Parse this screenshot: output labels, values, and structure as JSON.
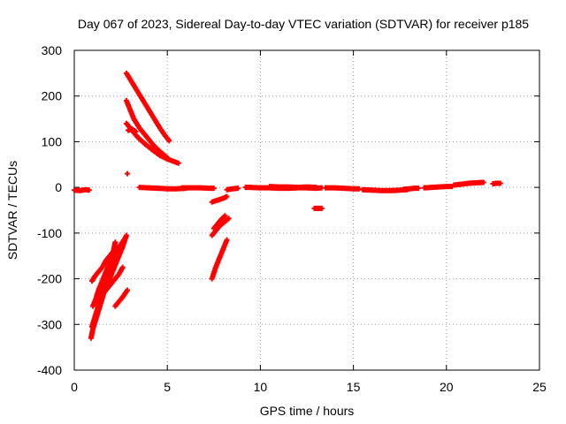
{
  "chart_data": {
    "type": "scatter",
    "title": "Day 067 of 2023, Sidereal Day-to-day VTEC variation (SDTVAR) for receiver p185",
    "xlabel": "GPS time / hours",
    "ylabel": "SDTVAR / TECUs",
    "xlim": [
      0,
      25
    ],
    "ylim": [
      -400,
      300
    ],
    "xticks": [
      "0",
      "5",
      "10",
      "15",
      "20",
      "25"
    ],
    "yticks": [
      "-400",
      "-300",
      "-200",
      "-100",
      "0",
      "100",
      "200",
      "300"
    ],
    "grid": true,
    "marker": "+",
    "color": "#ff0000",
    "series": [
      {
        "name": "arc-early-0",
        "points": [
          [
            0.0,
            -6
          ],
          [
            0.3,
            -7
          ],
          [
            0.6,
            -5
          ],
          [
            0.8,
            -6
          ]
        ]
      },
      {
        "name": "arc-neg-a",
        "points": [
          [
            0.9,
            -330
          ],
          [
            1.0,
            -310
          ],
          [
            1.15,
            -290
          ],
          [
            1.3,
            -270
          ],
          [
            1.45,
            -250
          ],
          [
            1.6,
            -230
          ],
          [
            1.75,
            -210
          ],
          [
            1.9,
            -190
          ],
          [
            2.05,
            -170
          ],
          [
            2.2,
            -150
          ],
          [
            2.3,
            -135
          ]
        ]
      },
      {
        "name": "arc-neg-b",
        "points": [
          [
            0.95,
            -305
          ],
          [
            1.1,
            -285
          ],
          [
            1.25,
            -265
          ],
          [
            1.4,
            -245
          ],
          [
            1.55,
            -225
          ],
          [
            1.7,
            -200
          ],
          [
            1.85,
            -180
          ],
          [
            2.0,
            -160
          ],
          [
            2.1,
            -140
          ],
          [
            2.2,
            -120
          ]
        ]
      },
      {
        "name": "arc-neg-c",
        "points": [
          [
            1.0,
            -260
          ],
          [
            1.15,
            -245
          ],
          [
            1.3,
            -225
          ],
          [
            1.5,
            -205
          ],
          [
            1.7,
            -185
          ],
          [
            1.9,
            -165
          ],
          [
            2.1,
            -150
          ],
          [
            2.3,
            -135
          ],
          [
            2.5,
            -125
          ],
          [
            2.75,
            -110
          ]
        ]
      },
      {
        "name": "arc-neg-d",
        "points": [
          [
            0.95,
            -205
          ],
          [
            1.1,
            -195
          ],
          [
            1.3,
            -185
          ],
          [
            1.5,
            -175
          ],
          [
            1.7,
            -160
          ],
          [
            1.9,
            -150
          ],
          [
            2.1,
            -140
          ]
        ]
      },
      {
        "name": "arc-neg-e",
        "points": [
          [
            1.4,
            -240
          ],
          [
            1.6,
            -225
          ],
          [
            1.8,
            -210
          ],
          [
            2.0,
            -190
          ],
          [
            2.2,
            -170
          ],
          [
            2.4,
            -150
          ],
          [
            2.6,
            -130
          ],
          [
            2.8,
            -105
          ]
        ]
      },
      {
        "name": "arc-neg-f",
        "points": [
          [
            1.6,
            -230
          ],
          [
            1.8,
            -220
          ],
          [
            2.0,
            -210
          ],
          [
            2.2,
            -200
          ],
          [
            2.4,
            -190
          ],
          [
            2.6,
            -175
          ]
        ]
      },
      {
        "name": "arc-neg-g",
        "points": [
          [
            2.2,
            -260
          ],
          [
            2.4,
            -250
          ],
          [
            2.6,
            -240
          ],
          [
            2.85,
            -225
          ]
        ]
      },
      {
        "name": "arc-pos-a",
        "points": [
          [
            2.8,
            250
          ],
          [
            3.1,
            230
          ],
          [
            3.4,
            210
          ],
          [
            3.7,
            190
          ],
          [
            4.0,
            170
          ],
          [
            4.3,
            150
          ],
          [
            4.6,
            130
          ],
          [
            4.85,
            115
          ],
          [
            5.1,
            102
          ]
        ]
      },
      {
        "name": "arc-pos-b",
        "points": [
          [
            2.8,
            190
          ],
          [
            3.0,
            170
          ],
          [
            3.2,
            150
          ],
          [
            3.5,
            130
          ],
          [
            3.9,
            110
          ],
          [
            4.3,
            90
          ],
          [
            4.7,
            75
          ],
          [
            5.0,
            65
          ]
        ]
      },
      {
        "name": "arc-pos-c",
        "points": [
          [
            2.8,
            140
          ],
          [
            3.1,
            125
          ],
          [
            3.4,
            110
          ],
          [
            3.8,
            95
          ],
          [
            4.2,
            82
          ],
          [
            4.6,
            70
          ],
          [
            5.0,
            62
          ],
          [
            5.6,
            53
          ]
        ]
      },
      {
        "name": "arc-pos-d",
        "points": [
          [
            2.9,
            125
          ],
          [
            3.1,
            128
          ],
          [
            3.3,
            122
          ]
        ]
      },
      {
        "name": "point-30",
        "points": [
          [
            2.85,
            30
          ]
        ]
      },
      {
        "name": "arc-zero-a",
        "points": [
          [
            3.5,
            0
          ],
          [
            4.0,
            -1
          ],
          [
            4.5,
            -2
          ],
          [
            5.0,
            -3
          ],
          [
            5.5,
            -3
          ],
          [
            6.0,
            -2
          ]
        ]
      },
      {
        "name": "arc-zero-b",
        "points": [
          [
            5.8,
            -1
          ],
          [
            6.3,
            -1
          ],
          [
            6.8,
            -1
          ],
          [
            7.3,
            -2
          ],
          [
            7.5,
            -2
          ]
        ]
      },
      {
        "name": "arc-mid-neg-a",
        "points": [
          [
            7.4,
            -200
          ],
          [
            7.6,
            -175
          ],
          [
            7.8,
            -155
          ],
          [
            8.0,
            -135
          ],
          [
            8.2,
            -115
          ]
        ]
      },
      {
        "name": "arc-mid-neg-b",
        "points": [
          [
            7.4,
            -105
          ],
          [
            7.6,
            -95
          ],
          [
            7.8,
            -85
          ],
          [
            8.0,
            -78
          ],
          [
            8.3,
            -68
          ]
        ]
      },
      {
        "name": "arc-mid-neg-c",
        "points": [
          [
            7.5,
            -90
          ],
          [
            7.7,
            -80
          ],
          [
            7.9,
            -70
          ],
          [
            8.1,
            -62
          ]
        ]
      },
      {
        "name": "arc-mid-neg-d",
        "points": [
          [
            7.4,
            -32
          ],
          [
            7.7,
            -28
          ],
          [
            8.0,
            -24
          ],
          [
            8.2,
            -20
          ]
        ]
      },
      {
        "name": "arc-zero-c",
        "points": [
          [
            8.2,
            -5
          ],
          [
            8.5,
            -3
          ],
          [
            8.8,
            -2
          ]
        ]
      },
      {
        "name": "arc-zero-d",
        "points": [
          [
            9.2,
            0
          ],
          [
            9.5,
            0
          ],
          [
            10.0,
            -1
          ],
          [
            10.5,
            -1
          ],
          [
            11.0,
            -2
          ],
          [
            11.5,
            -2
          ],
          [
            12.0,
            -1
          ],
          [
            12.5,
            -1
          ],
          [
            13.0,
            -2
          ],
          [
            13.3,
            -1
          ]
        ]
      },
      {
        "name": "arc-zero-e",
        "points": [
          [
            10.5,
            2
          ],
          [
            11.0,
            1
          ],
          [
            11.5,
            1
          ],
          [
            12.0,
            0
          ],
          [
            12.5,
            1
          ],
          [
            13.0,
            0
          ]
        ]
      },
      {
        "name": "point-neg45",
        "points": [
          [
            12.9,
            -46
          ],
          [
            13.1,
            -46
          ],
          [
            13.3,
            -46
          ]
        ]
      },
      {
        "name": "arc-zero-f",
        "points": [
          [
            13.5,
            -1
          ],
          [
            14.0,
            -1
          ],
          [
            14.5,
            -2
          ],
          [
            15.0,
            -3
          ],
          [
            15.3,
            -3
          ]
        ]
      },
      {
        "name": "arc-zero-g",
        "points": [
          [
            15.5,
            -5
          ],
          [
            16.0,
            -6
          ],
          [
            16.5,
            -7
          ],
          [
            17.0,
            -7
          ],
          [
            17.5,
            -6
          ],
          [
            17.9,
            -5
          ]
        ]
      },
      {
        "name": "arc-zero-h",
        "points": [
          [
            17.7,
            -4
          ],
          [
            18.0,
            -3
          ],
          [
            18.3,
            -2
          ],
          [
            18.5,
            -2
          ]
        ]
      },
      {
        "name": "arc-zero-i",
        "points": [
          [
            18.8,
            -1
          ],
          [
            19.2,
            0
          ],
          [
            19.6,
            1
          ],
          [
            20.0,
            2
          ],
          [
            20.3,
            2
          ]
        ]
      },
      {
        "name": "arc-pos-small",
        "points": [
          [
            20.4,
            5
          ],
          [
            20.8,
            7
          ],
          [
            21.2,
            9
          ],
          [
            21.6,
            10
          ],
          [
            22.0,
            11
          ]
        ]
      },
      {
        "name": "arc-end",
        "points": [
          [
            22.5,
            8
          ],
          [
            22.7,
            9
          ],
          [
            22.9,
            9
          ]
        ]
      }
    ]
  }
}
